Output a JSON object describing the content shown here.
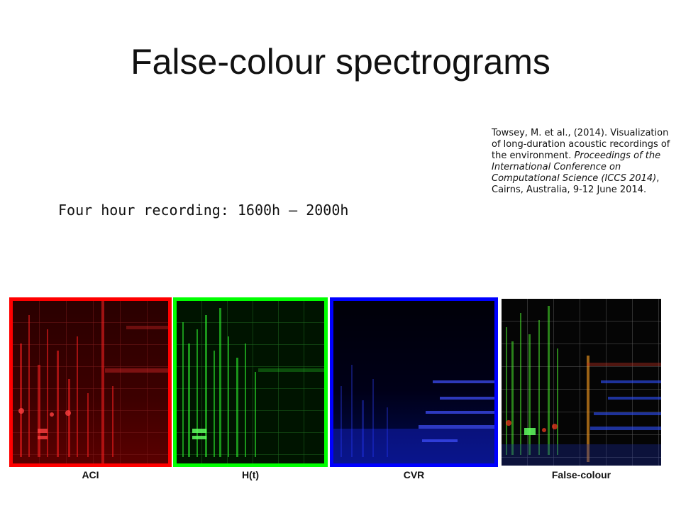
{
  "slide": {
    "title": "False-colour spectrograms",
    "subtitle": "Four hour recording: 1600h – 2000h"
  },
  "citation": {
    "part1": "Towsey, M. et al., (2014). Visualization of long-duration acoustic recordings of the environment. ",
    "part2": "Proceedings of the International Conference on Computational Science (ICCS 2014)",
    "part3": ", Cairns, Australia, 9-12 June 2014."
  },
  "panels": [
    {
      "label": "ACI",
      "border_color": "#ff0000",
      "tint": "#ff2020"
    },
    {
      "label": "H(t)",
      "border_color": "#00ff00",
      "tint": "#30ff30"
    },
    {
      "label": "CVR",
      "border_color": "#0000ff",
      "tint": "#3040ff"
    },
    {
      "label": "False-colour",
      "border_color": "",
      "tint": "mixed"
    }
  ]
}
